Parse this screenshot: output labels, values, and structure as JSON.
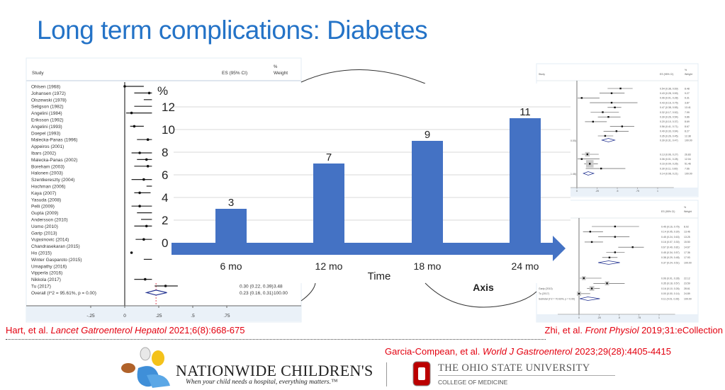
{
  "slide": {
    "title": "Long term complications: Diabetes"
  },
  "colors": {
    "title": "#2473c7",
    "bar": "#4472c4",
    "reference": "#e3000f",
    "diamond": "#1f2f8f"
  },
  "forest_left": {
    "headers": {
      "study": "Study",
      "es": "ES (95% CI)",
      "weight_pct": "%",
      "weight": "Weight"
    },
    "axis_ticks": [
      "-.25",
      "0",
      ".25",
      ".5",
      ".75"
    ],
    "tick_values": [
      -0.25,
      0,
      0.25,
      0.5,
      0.75
    ],
    "pooled_line": 0.23,
    "studies": [
      {
        "name": "Ohlsen (1968)",
        "est": 0.0,
        "lo": 0.0,
        "hi": 0.14
      },
      {
        "name": "Johansen (1972)",
        "est": 0.18,
        "lo": 0.07,
        "hi": 0.2
      },
      {
        "name": "Olszewski (1978)",
        "est": null,
        "lo": 0.14,
        "hi": 0.2
      },
      {
        "name": "Seligson (1982)",
        "est": null,
        "lo": 0.07,
        "hi": 0.2
      },
      {
        "name": "Angelini (1984)",
        "est": 0.05,
        "lo": 0.01,
        "hi": 0.2
      },
      {
        "name": "Eriksson (1992)"
      },
      {
        "name": "Angelini (1993)",
        "est": 0.07,
        "lo": 0.04,
        "hi": 0.14
      },
      {
        "name": "Doepel (1993)"
      },
      {
        "name": "Malecka-Panas (1996)",
        "est": 0.17,
        "lo": 0.09,
        "hi": 0.2
      },
      {
        "name": "Appeiros (2001)"
      },
      {
        "name": "Ibars (2002)",
        "est": 0.11,
        "lo": 0.05,
        "hi": 0.2
      },
      {
        "name": "Malecka-Panas (2002)",
        "est": 0.16,
        "lo": 0.09,
        "hi": 0.2
      },
      {
        "name": "Boreham (2003)",
        "est": 0.17,
        "lo": 0.07,
        "hi": 0.2
      },
      {
        "name": "Halonen (2003)"
      },
      {
        "name": "Szentkereszty (2004)",
        "est": 0.14,
        "lo": 0.05,
        "hi": 0.2
      },
      {
        "name": "Hochman (2006)",
        "est": null,
        "lo": 0.16,
        "hi": 0.2
      },
      {
        "name": "Kaya (2007)",
        "est": 0.11,
        "lo": 0.07,
        "hi": 0.19
      },
      {
        "name": "Yasuda (2008)"
      },
      {
        "name": "Pelli (2009)",
        "est": 0.11,
        "lo": 0.05,
        "hi": 0.2
      },
      {
        "name": "Gupta (2009)",
        "est": null,
        "lo": 0.09,
        "hi": 0.2
      },
      {
        "name": "Andersson (2010)",
        "est": null,
        "lo": 0.12,
        "hi": 0.2
      },
      {
        "name": "Uomo (2010)",
        "est": 0.16,
        "lo": 0.07,
        "hi": 0.2
      },
      {
        "name": "Garip (2013)"
      },
      {
        "name": "Vujasinovic (2014)",
        "est": 0.14,
        "lo": 0.08,
        "hi": 0.2
      },
      {
        "name": "Chandrasekaran (2015)"
      },
      {
        "name": "Ho (2015)",
        "est": 0.05,
        "lo": 0.05,
        "hi": 0.05
      },
      {
        "name": "Winter Gasparoto (2015)",
        "est": null,
        "lo": 0.14,
        "hi": 0.2
      },
      {
        "name": "Umapathy (2016)"
      },
      {
        "name": "Vipperla (2016)"
      },
      {
        "name": "Nikkola (2017)",
        "est": 0.15,
        "lo": 0.07,
        "hi": 0.2
      },
      {
        "name": "Tu (2017)",
        "est": 0.3,
        "lo": 0.22,
        "hi": 0.39,
        "es_text": "0.30 (0.22, 0.39)",
        "weight": "3.48"
      }
    ],
    "overall": {
      "name": "Overall  (I^2 = 95.61%, p = 0.00)",
      "est": 0.23,
      "lo": 0.16,
      "hi": 0.31,
      "es_text": "0.23 (0.16, 0.31)",
      "weight": "100.00"
    }
  },
  "chart_data": {
    "type": "bar",
    "categories": [
      "6 mo",
      "12 mo",
      "18 mo",
      "24 mo"
    ],
    "values": [
      3,
      7,
      9,
      11
    ],
    "data_labels": [
      "3",
      "7",
      "9",
      "11"
    ],
    "ylabel": "%",
    "xlabel": "Time",
    "annotation": "Axis",
    "ylim": [
      0,
      12
    ],
    "yticks": [
      "0",
      "2",
      "4",
      "6",
      "8",
      "10",
      "12"
    ],
    "grid": true,
    "bar_color": "#4472c4"
  },
  "forest_right_top": {
    "headers": {
      "study": "Study",
      "es": "ES (95% CI)",
      "weight_pct": "%",
      "weight": "Weight"
    },
    "axis_ticks": [
      "0",
      ".25",
      ".5",
      ".75",
      "1"
    ],
    "fragments": [
      "0.00)",
      "1.46)"
    ],
    "groups": [
      {
        "rows": [
          {
            "est": 0.54,
            "lo": 0.38,
            "hi": 0.69,
            "es_text": "0.54 (0.38, 0.69)",
            "weight": "8.48"
          },
          {
            "est": 0.43,
            "lo": 0.28,
            "hi": 0.59,
            "es_text": "0.43 (0.28, 0.59)",
            "weight": "9.27"
          },
          {
            "est": 0.06,
            "lo": 0.01,
            "hi": 0.28,
            "es_text": "0.06 (0.01, 0.28)",
            "weight": "6.31"
          },
          {
            "est": 0.43,
            "lo": 0.16,
            "hi": 0.75,
            "es_text": "0.43 (0.16, 0.75)",
            "weight": "3.87"
          },
          {
            "est": 0.47,
            "lo": 0.38,
            "hi": 0.55,
            "es_text": "0.47 (0.38, 0.55)",
            "weight": "13.41"
          },
          {
            "est": 0.32,
            "lo": 0.17,
            "hi": 0.52,
            "es_text": "0.32 (0.17, 0.52)",
            "weight": "7.99"
          },
          {
            "est": 0.39,
            "lo": 0.26,
            "hi": 0.54,
            "es_text": "0.39 (0.26, 0.54)",
            "weight": "9.86"
          },
          {
            "est": 0.2,
            "lo": 0.1,
            "hi": 0.37,
            "es_text": "0.20 (0.10, 0.37)",
            "weight": "8.69"
          },
          {
            "est": 0.56,
            "lo": 0.41,
            "hi": 0.71,
            "es_text": "0.56 (0.41, 0.71)",
            "weight": "8.67"
          },
          {
            "est": 0.49,
            "lo": 0.33,
            "hi": 0.64,
            "es_text": "0.49 (0.33, 0.64)",
            "weight": "8.27"
          },
          {
            "est": 0.35,
            "lo": 0.26,
            "hi": 0.45,
            "es_text": "0.35 (0.26, 0.45)",
            "weight": "12.38"
          }
        ],
        "subtotal": {
          "est": 0.39,
          "lo": 0.31,
          "hi": 0.47,
          "es_text": "0.39 (0.31, 0.47)",
          "weight": "100.00"
        }
      },
      {
        "rows": [
          {
            "est": 0.13,
            "lo": 0.06,
            "hi": 0.27,
            "es_text": "0.13 (0.06, 0.27)",
            "weight": "26.83"
          },
          {
            "est": 0.06,
            "lo": 0.01,
            "hi": 0.28,
            "es_text": "0.06 (0.01, 0.28)",
            "weight": "12.04"
          },
          {
            "est": 0.16,
            "lo": 0.09,
            "hi": 0.26,
            "es_text": "0.16 (0.09, 0.26)",
            "weight": "51.46"
          },
          {
            "est": 0.3,
            "lo": 0.11,
            "hi": 0.6,
            "es_text": "0.30 (0.11, 0.60)",
            "weight": "7.66"
          }
        ],
        "subtotal": {
          "est": 0.14,
          "lo": 0.08,
          "hi": 0.21,
          "es_text": "0.14 (0.08, 0.21)",
          "weight": "100.00"
        }
      }
    ]
  },
  "forest_right_bottom": {
    "headers": {
      "es": "ES (95% CI)",
      "weight_pct": "%",
      "weight": "Weight"
    },
    "axis_ticks": [
      "0",
      ".25",
      ".5",
      ".75",
      "1"
    ],
    "groups": [
      {
        "rows": [
          {
            "est": 0.45,
            "lo": 0.16,
            "hi": 0.75,
            "es_text": "0.45 (0.16, 0.75)",
            "weight": "8.02"
          },
          {
            "est": 0.14,
            "lo": 0.05,
            "hi": 0.3,
            "es_text": "0.14 (0.05, 0.30)",
            "weight": "13.46"
          },
          {
            "est": 0.45,
            "lo": 0.24,
            "hi": 0.63,
            "es_text": "0.45 (0.24, 0.63)",
            "weight": "13.25"
          },
          {
            "est": 0.16,
            "lo": 0.07,
            "hi": 0.3,
            "es_text": "0.16 (0.07, 0.30)",
            "weight": "15.50"
          },
          {
            "est": 0.67,
            "lo": 0.49,
            "hi": 0.81,
            "es_text": "0.67 (0.49, 0.81)",
            "weight": "14.67"
          },
          {
            "est": 0.45,
            "lo": 0.34,
            "hi": 0.57,
            "es_text": "0.45 (0.34, 0.57)",
            "weight": "17.36"
          },
          {
            "est": 0.38,
            "lo": 0.29,
            "hi": 0.48,
            "es_text": "0.38 (0.29, 0.48)",
            "weight": "17.93"
          }
        ],
        "subtotal": {
          "est": 0.37,
          "lo": 0.24,
          "hi": 0.51,
          "es_text": "0.37 (0.24, 0.51)",
          "weight": "100.00"
        }
      },
      {
        "rows": [
          {
            "label": "",
            "est": 0.06,
            "lo": 0.01,
            "hi": 0.28,
            "es_text": "0.06 (0.01, 0.28)",
            "weight": "22.12"
          },
          {
            "label": "",
            "est": 0.35,
            "lo": 0.18,
            "hi": 0.57,
            "es_text": "0.35 (0.18, 0.57)",
            "weight": "23.59"
          },
          {
            "label": "Garip (2013)",
            "est": 0.16,
            "lo": 0.1,
            "hi": 0.26,
            "es_text": "0.16 (0.10, 0.26)",
            "weight": "28.61"
          },
          {
            "label": "Tu (2017)",
            "est": 0.0,
            "lo": 0.0,
            "hi": 0.14,
            "es_text": "0.00 (0.00, 0.14)",
            "weight": "24.89"
          }
        ],
        "subtotal": {
          "label": "Subtotal  (I^2 = 70.93%, p = 0.00)",
          "est": 0.11,
          "lo": 0.01,
          "hi": 0.26,
          "es_text": "0.11 (0.01, 0.26)",
          "weight": "100.00"
        }
      }
    ]
  },
  "references": {
    "hart": {
      "authors": "Hart, et al. ",
      "journal": "Lancet Gatroenterol Hepatol",
      "detail": " 2021;6(8):668-675"
    },
    "zhi": {
      "authors": "Zhi, et al. ",
      "journal": "Front Physiol",
      "detail": " 2019;31:eCollection"
    },
    "garcia": {
      "authors": "Garcia-Compean, et al. ",
      "journal": "World J  Gastroenterol",
      "detail": " 2023;29(28):4405-4415"
    }
  },
  "logos": {
    "nationwide": {
      "name": "NATIONWIDE CHILDREN'S",
      "tagline": "When your child needs a hospital, everything matters.™"
    },
    "osu": {
      "name": "THE OHIO STATE UNIVERSITY",
      "subtitle": "COLLEGE OF MEDICINE"
    }
  }
}
